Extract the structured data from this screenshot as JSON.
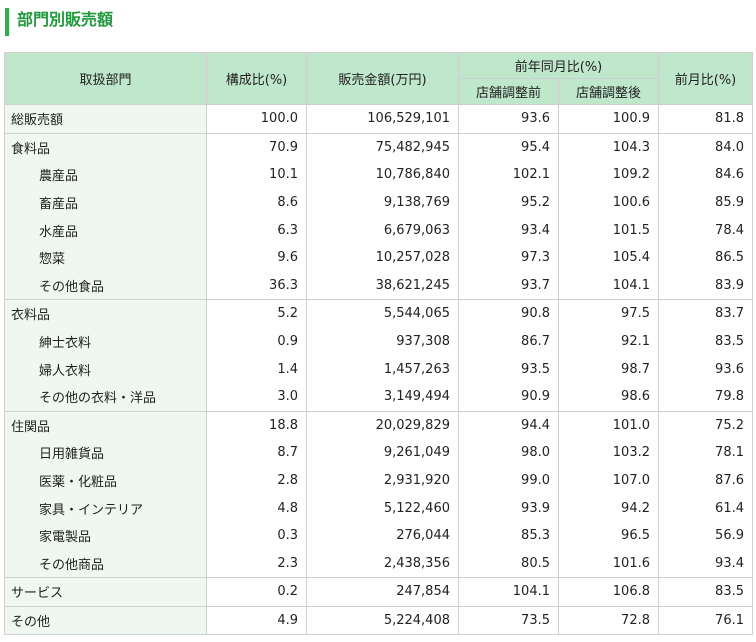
{
  "title": "部門別販売額",
  "headers": {
    "dept": "取扱部門",
    "ratio": "構成比(%)",
    "sales": "販売金額(万円)",
    "yoy_group": "前年同月比(%)",
    "yoy_before": "店舗調整前",
    "yoy_after": "店舗調整後",
    "mom": "前月比(%)"
  },
  "rows": [
    {
      "name": "総販売額",
      "sub": false,
      "ratio": "100.0",
      "sales": "106,529,101",
      "before": "93.6",
      "after": "100.9",
      "mom": "81.8",
      "groupStart": true
    },
    {
      "name": "食料品",
      "sub": false,
      "ratio": "70.9",
      "sales": "75,482,945",
      "before": "95.4",
      "after": "104.3",
      "mom": "84.0",
      "groupStart": true
    },
    {
      "name": "農産品",
      "sub": true,
      "ratio": "10.1",
      "sales": "10,786,840",
      "before": "102.1",
      "after": "109.2",
      "mom": "84.6",
      "groupStart": false
    },
    {
      "name": "畜産品",
      "sub": true,
      "ratio": "8.6",
      "sales": "9,138,769",
      "before": "95.2",
      "after": "100.6",
      "mom": "85.9",
      "groupStart": false
    },
    {
      "name": "水産品",
      "sub": true,
      "ratio": "6.3",
      "sales": "6,679,063",
      "before": "93.4",
      "after": "101.5",
      "mom": "78.4",
      "groupStart": false
    },
    {
      "name": "惣菜",
      "sub": true,
      "ratio": "9.6",
      "sales": "10,257,028",
      "before": "97.3",
      "after": "105.4",
      "mom": "86.5",
      "groupStart": false
    },
    {
      "name": "その他食品",
      "sub": true,
      "ratio": "36.3",
      "sales": "38,621,245",
      "before": "93.7",
      "after": "104.1",
      "mom": "83.9",
      "groupStart": false
    },
    {
      "name": "衣料品",
      "sub": false,
      "ratio": "5.2",
      "sales": "5,544,065",
      "before": "90.8",
      "after": "97.5",
      "mom": "83.7",
      "groupStart": true
    },
    {
      "name": "紳士衣料",
      "sub": true,
      "ratio": "0.9",
      "sales": "937,308",
      "before": "86.7",
      "after": "92.1",
      "mom": "83.5",
      "groupStart": false
    },
    {
      "name": "婦人衣料",
      "sub": true,
      "ratio": "1.4",
      "sales": "1,457,263",
      "before": "93.5",
      "after": "98.7",
      "mom": "93.6",
      "groupStart": false
    },
    {
      "name": "その他の衣料・洋品",
      "sub": true,
      "ratio": "3.0",
      "sales": "3,149,494",
      "before": "90.9",
      "after": "98.6",
      "mom": "79.8",
      "groupStart": false
    },
    {
      "name": "住関品",
      "sub": false,
      "ratio": "18.8",
      "sales": "20,029,829",
      "before": "94.4",
      "after": "101.0",
      "mom": "75.2",
      "groupStart": true
    },
    {
      "name": "日用雑貨品",
      "sub": true,
      "ratio": "8.7",
      "sales": "9,261,049",
      "before": "98.0",
      "after": "103.2",
      "mom": "78.1",
      "groupStart": false
    },
    {
      "name": "医薬・化粧品",
      "sub": true,
      "ratio": "2.8",
      "sales": "2,931,920",
      "before": "99.0",
      "after": "107.0",
      "mom": "87.6",
      "groupStart": false
    },
    {
      "name": "家具・インテリア",
      "sub": true,
      "ratio": "4.8",
      "sales": "5,122,460",
      "before": "93.9",
      "after": "94.2",
      "mom": "61.4",
      "groupStart": false
    },
    {
      "name": "家電製品",
      "sub": true,
      "ratio": "0.3",
      "sales": "276,044",
      "before": "85.3",
      "after": "96.5",
      "mom": "56.9",
      "groupStart": false
    },
    {
      "name": "その他商品",
      "sub": true,
      "ratio": "2.3",
      "sales": "2,438,356",
      "before": "80.5",
      "after": "101.6",
      "mom": "93.4",
      "groupStart": false
    },
    {
      "name": "サービス",
      "sub": false,
      "ratio": "0.2",
      "sales": "247,854",
      "before": "104.1",
      "after": "106.8",
      "mom": "83.5",
      "groupStart": true
    },
    {
      "name": "その他",
      "sub": false,
      "ratio": "4.9",
      "sales": "5,224,408",
      "before": "73.5",
      "after": "72.8",
      "mom": "76.1",
      "groupStart": true
    }
  ]
}
